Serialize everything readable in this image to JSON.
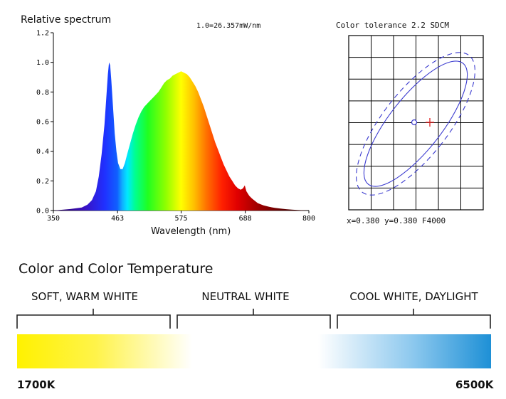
{
  "chart_data": [
    {
      "type": "area",
      "title": "Relative spectrum",
      "annotation": "1.0=26.357mW/nm",
      "xlabel": "Wavelength (nm)",
      "ylabel": "",
      "xlim": [
        350,
        800
      ],
      "ylim": [
        0,
        1.2
      ],
      "x_ticks": [
        "350",
        "463",
        "575",
        "688",
        "800"
      ],
      "y_ticks": [
        "0.0",
        "0.2",
        "0.4",
        "0.6",
        "0.8",
        "1.0",
        "1.2"
      ],
      "x": [
        350,
        380,
        400,
        410,
        418,
        425,
        430,
        435,
        440,
        443,
        446,
        448,
        450,
        452,
        455,
        458,
        461,
        464,
        468,
        472,
        476,
        480,
        485,
        490,
        495,
        500,
        505,
        510,
        515,
        520,
        525,
        530,
        535,
        540,
        545,
        550,
        555,
        560,
        565,
        570,
        575,
        580,
        585,
        590,
        595,
        600,
        605,
        610,
        615,
        620,
        625,
        630,
        635,
        640,
        645,
        650,
        655,
        660,
        665,
        670,
        675,
        680,
        684,
        687,
        690,
        695,
        700,
        710,
        720,
        730,
        740,
        750,
        760,
        770,
        780,
        790,
        800
      ],
      "values": [
        0.0,
        0.01,
        0.02,
        0.04,
        0.07,
        0.13,
        0.23,
        0.38,
        0.58,
        0.75,
        0.92,
        1.0,
        0.98,
        0.88,
        0.7,
        0.52,
        0.4,
        0.32,
        0.28,
        0.28,
        0.32,
        0.38,
        0.45,
        0.52,
        0.58,
        0.63,
        0.67,
        0.7,
        0.72,
        0.74,
        0.76,
        0.78,
        0.8,
        0.83,
        0.86,
        0.88,
        0.89,
        0.91,
        0.92,
        0.93,
        0.94,
        0.93,
        0.92,
        0.9,
        0.87,
        0.84,
        0.8,
        0.75,
        0.7,
        0.64,
        0.58,
        0.52,
        0.46,
        0.41,
        0.36,
        0.31,
        0.27,
        0.23,
        0.2,
        0.17,
        0.15,
        0.14,
        0.15,
        0.17,
        0.13,
        0.1,
        0.08,
        0.05,
        0.035,
        0.025,
        0.018,
        0.013,
        0.009,
        0.006,
        0.004,
        0.002,
        0.0
      ],
      "grid": false,
      "fill": "rainbow gradient by wavelength"
    },
    {
      "type": "scatter",
      "title": "Color tolerance 2.2 SDCM",
      "footer": "x=0.380 y=0.380 F4000",
      "grid": true,
      "reference_point": {
        "x": 0.38,
        "y": 0.38,
        "marker": "circle"
      },
      "measured_point": {
        "marker": "red cross",
        "color": "#e02020"
      },
      "ellipses": [
        {
          "style": "solid",
          "color": "#3a3acf"
        },
        {
          "style": "dashed",
          "color": "#3a3acf"
        }
      ]
    },
    {
      "type": "table",
      "title": "Color and Color Temperature",
      "bands": [
        "SOFT, WARM WHITE",
        "NEUTRAL WHITE",
        "COOL WHITE, DAYLIGHT"
      ],
      "min_label": "1700K",
      "max_label": "6500K",
      "warm_color": "#fff200",
      "cool_color": "#1e90d6"
    }
  ]
}
